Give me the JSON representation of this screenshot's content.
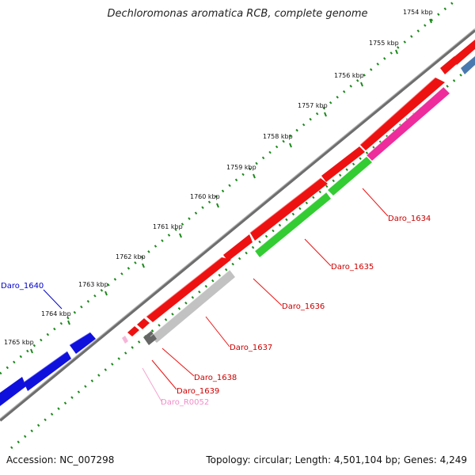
{
  "title": "Dechloromonas aromatica RCB, complete genome",
  "footer": {
    "accession": "Accession: NC_007298",
    "summary": "Topology: circular; Length: 4,501,104 bp; Genes: 4,249"
  },
  "ticks": [
    {
      "label": "1754 kbp"
    },
    {
      "label": "1755 kbp"
    },
    {
      "label": "1756 kbp"
    },
    {
      "label": "1757 kbp"
    },
    {
      "label": "1758 kbp"
    },
    {
      "label": "1759 kbp"
    },
    {
      "label": "1760 kbp"
    },
    {
      "label": "1761 kbp"
    },
    {
      "label": "1762 kbp"
    },
    {
      "label": "1763 kbp"
    },
    {
      "label": "1764 kbp"
    },
    {
      "label": "1765 kbp"
    }
  ],
  "gene_labels": [
    {
      "name": "Daro_1634",
      "color": "#cc0000"
    },
    {
      "name": "Daro_1635",
      "color": "#cc0000"
    },
    {
      "name": "Daro_1636",
      "color": "#cc0000"
    },
    {
      "name": "Daro_1637",
      "color": "#cc0000"
    },
    {
      "name": "Daro_1638",
      "color": "#cc0000"
    },
    {
      "name": "Daro_1639",
      "color": "#cc0000"
    },
    {
      "name": "Daro_R0052",
      "color": "#f08cc8"
    },
    {
      "name": "Daro_1640",
      "color": "#0000cc"
    }
  ],
  "colors": {
    "cds_red": "#ee1111",
    "cds_green": "#33cc33",
    "cds_gray": "#bdbdbd",
    "cds_magenta": "#ee2c9c",
    "cds_blue": "#1010dd",
    "backbone": "#808080",
    "tick_green": "#1a8a1a"
  }
}
